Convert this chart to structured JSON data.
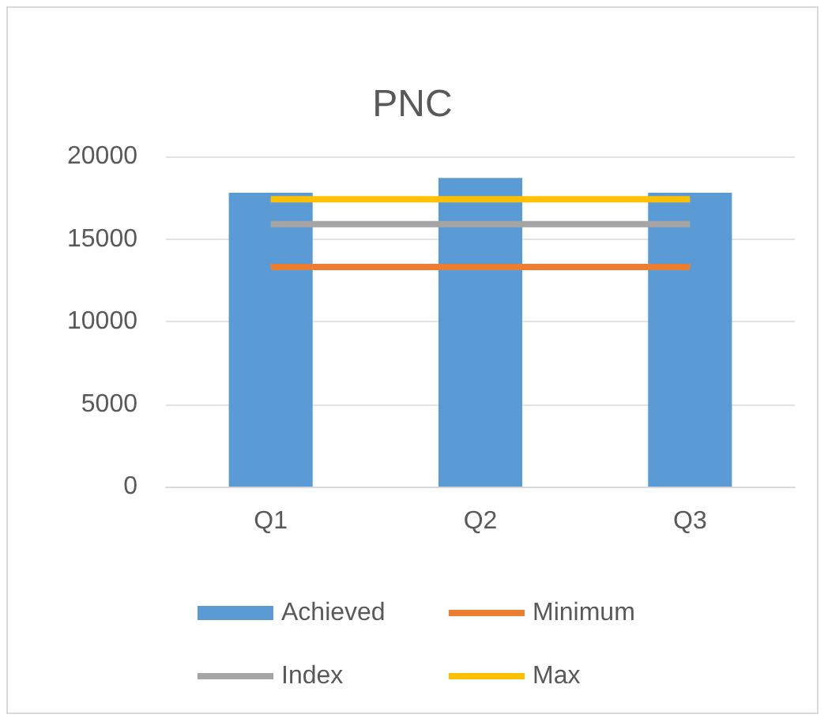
{
  "chart_data": {
    "type": "bar",
    "title": "PNC",
    "categories": [
      "Q1",
      "Q2",
      "Q3"
    ],
    "series": [
      {
        "name": "Achieved",
        "color": "#5b9bd5",
        "values": [
          17800,
          18700,
          17800
        ]
      },
      {
        "name": "Minimum",
        "type": "line",
        "color": "#ed7d31",
        "values": [
          13300,
          13300,
          13300
        ]
      },
      {
        "name": "Index",
        "type": "line",
        "color": "#a5a5a5",
        "values": [
          15900,
          15900,
          15900
        ]
      },
      {
        "name": "Max",
        "type": "line",
        "color": "#ffc000",
        "values": [
          17400,
          17400,
          17400
        ]
      }
    ],
    "ylim": [
      0,
      20000
    ],
    "yticks": [
      0,
      5000,
      10000,
      15000,
      20000
    ],
    "grid": "y",
    "legend": "bottom",
    "marker": "none",
    "line_style": "solid"
  }
}
